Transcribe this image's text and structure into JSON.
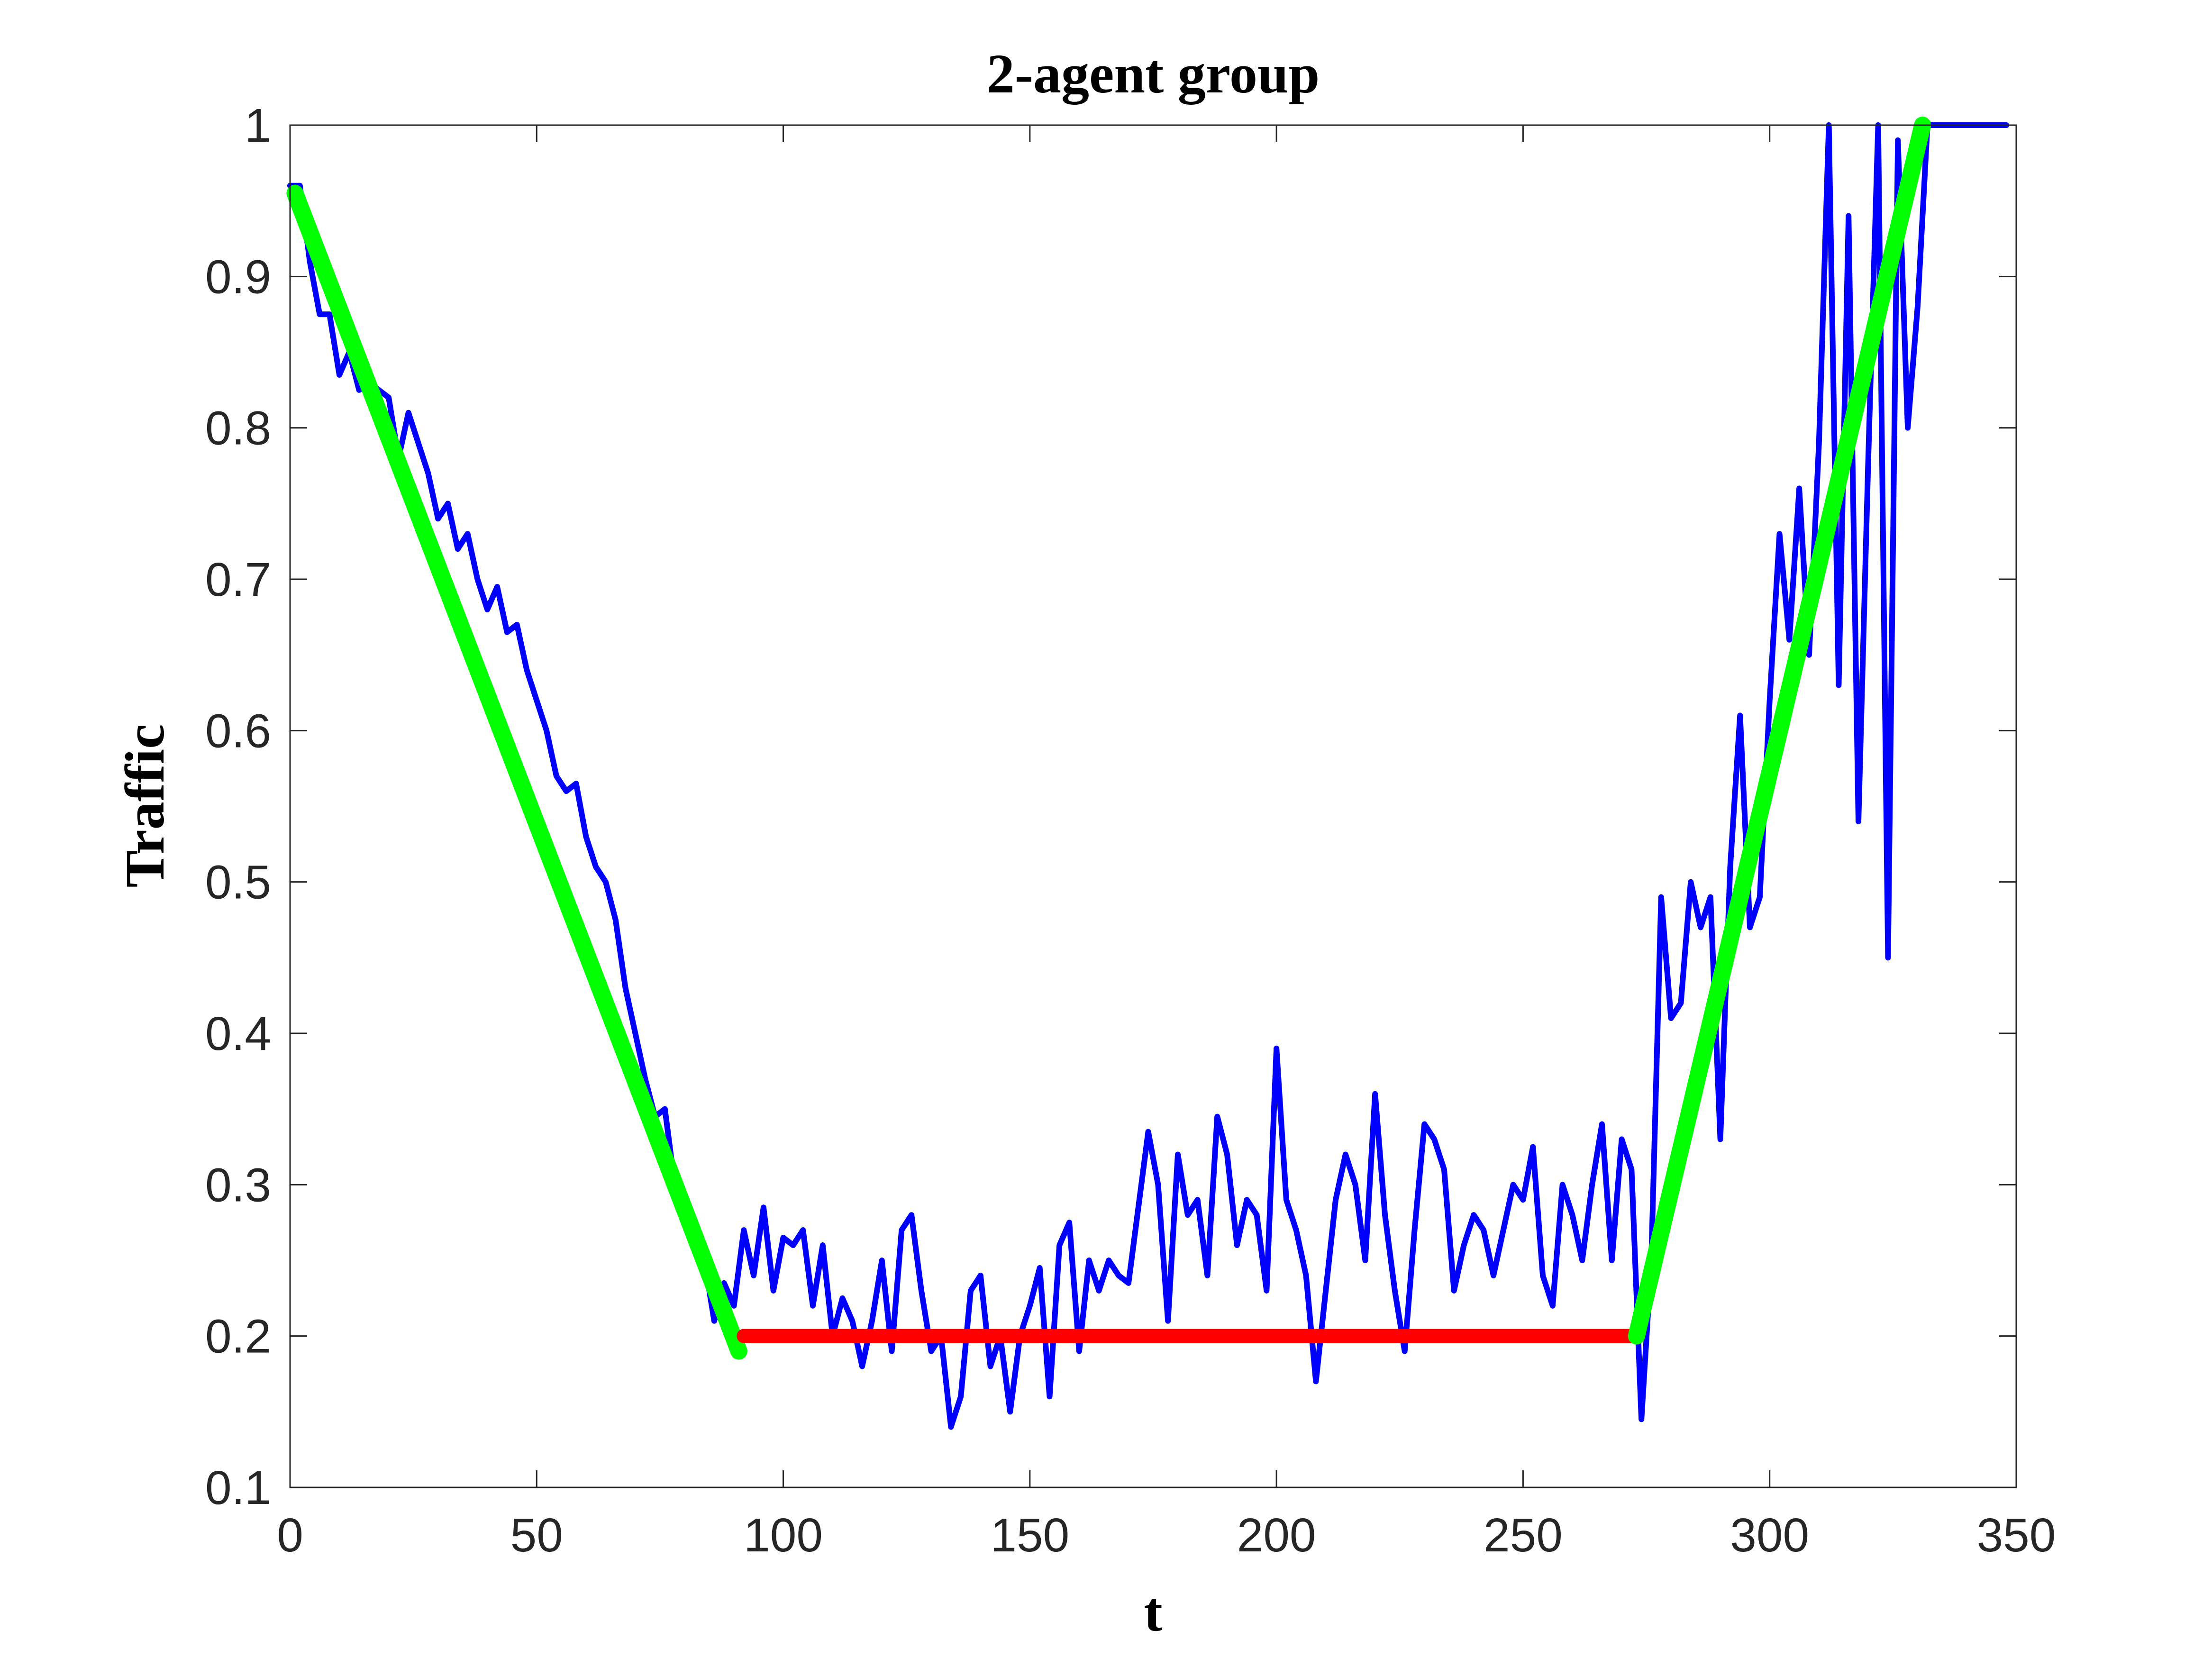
{
  "chart_data": {
    "type": "line",
    "title": "2-agent group",
    "xlabel": "t",
    "ylabel": "Traffic",
    "xlim": [
      0,
      350
    ],
    "xticks": [
      0,
      50,
      100,
      150,
      200,
      250,
      300,
      350
    ],
    "ylim": [
      0.1,
      1
    ],
    "yticks": [
      0.1,
      0.2,
      0.3,
      0.4,
      0.5,
      0.6,
      0.7,
      0.8,
      0.9,
      1
    ],
    "grid": false,
    "series": [
      {
        "color": "#0000ff",
        "width": 4,
        "x": [
          0,
          2,
          4,
          6,
          8,
          10,
          12,
          14,
          16,
          18,
          20,
          22,
          24,
          26,
          28,
          30,
          32,
          34,
          36,
          38,
          40,
          42,
          44,
          46,
          48,
          50,
          52,
          54,
          56,
          58,
          60,
          62,
          64,
          66,
          68,
          70,
          72,
          74,
          76,
          78,
          80,
          82,
          84,
          86,
          88,
          90,
          92,
          94,
          96,
          98,
          100,
          102,
          104,
          106,
          108,
          110,
          112,
          114,
          116,
          118,
          120,
          122,
          124,
          126,
          128,
          130,
          132,
          134,
          136,
          138,
          140,
          142,
          144,
          146,
          148,
          150,
          152,
          154,
          156,
          158,
          160,
          162,
          164,
          166,
          168,
          170,
          172,
          174,
          176,
          178,
          180,
          182,
          184,
          186,
          188,
          190,
          192,
          194,
          196,
          198,
          200,
          202,
          204,
          206,
          208,
          210,
          212,
          214,
          216,
          218,
          220,
          222,
          224,
          226,
          228,
          230,
          232,
          234,
          236,
          238,
          240,
          242,
          244,
          246,
          248,
          250,
          252,
          254,
          256,
          258,
          260,
          262,
          264,
          266,
          268,
          270,
          272,
          274,
          276,
          278,
          280,
          282,
          284,
          286,
          288,
          290,
          292,
          294,
          296,
          298,
          300,
          302,
          304,
          306,
          308,
          310,
          312,
          314,
          316,
          318,
          320,
          322,
          324,
          326,
          328,
          330,
          332,
          335,
          340,
          345,
          348
        ],
        "values": [
          0.96,
          0.96,
          0.91,
          0.875,
          0.875,
          0.835,
          0.85,
          0.825,
          0.83,
          0.825,
          0.82,
          0.78,
          0.81,
          0.79,
          0.77,
          0.74,
          0.75,
          0.72,
          0.73,
          0.7,
          0.68,
          0.695,
          0.665,
          0.67,
          0.64,
          0.62,
          0.6,
          0.57,
          0.56,
          0.565,
          0.53,
          0.51,
          0.5,
          0.475,
          0.43,
          0.4,
          0.37,
          0.345,
          0.35,
          0.3,
          0.29,
          0.27,
          0.25,
          0.21,
          0.235,
          0.22,
          0.27,
          0.24,
          0.285,
          0.23,
          0.265,
          0.26,
          0.27,
          0.22,
          0.26,
          0.2,
          0.225,
          0.21,
          0.18,
          0.21,
          0.25,
          0.19,
          0.27,
          0.28,
          0.23,
          0.19,
          0.2,
          0.14,
          0.16,
          0.23,
          0.24,
          0.18,
          0.2,
          0.15,
          0.2,
          0.22,
          0.245,
          0.16,
          0.26,
          0.275,
          0.19,
          0.25,
          0.23,
          0.25,
          0.24,
          0.235,
          0.285,
          0.335,
          0.3,
          0.21,
          0.32,
          0.28,
          0.29,
          0.24,
          0.345,
          0.32,
          0.26,
          0.29,
          0.28,
          0.23,
          0.39,
          0.29,
          0.27,
          0.24,
          0.17,
          0.23,
          0.29,
          0.32,
          0.3,
          0.25,
          0.36,
          0.28,
          0.23,
          0.19,
          0.27,
          0.34,
          0.33,
          0.31,
          0.23,
          0.26,
          0.28,
          0.27,
          0.24,
          0.27,
          0.3,
          0.29,
          0.325,
          0.24,
          0.22,
          0.3,
          0.28,
          0.25,
          0.3,
          0.34,
          0.25,
          0.33,
          0.31,
          0.145,
          0.25,
          0.49,
          0.41,
          0.42,
          0.5,
          0.47,
          0.49,
          0.33,
          0.51,
          0.61,
          0.47,
          0.49,
          0.62,
          0.73,
          0.66,
          0.76,
          0.65,
          0.79,
          1,
          0.63,
          0.94,
          0.54,
          0.78,
          1,
          0.45,
          0.99,
          0.8,
          0.88,
          1,
          1,
          1,
          1,
          1
        ]
      },
      {
        "color": "#00ff00",
        "width": 12,
        "x": [
          1,
          91
        ],
        "values": [
          0.955,
          0.19
        ]
      },
      {
        "color": "#ff0000",
        "width": 10,
        "x": [
          92,
          272
        ],
        "values": [
          0.2,
          0.2
        ]
      },
      {
        "color": "#00ff00",
        "width": 12,
        "x": [
          273,
          331
        ],
        "values": [
          0.2,
          1
        ]
      }
    ]
  }
}
